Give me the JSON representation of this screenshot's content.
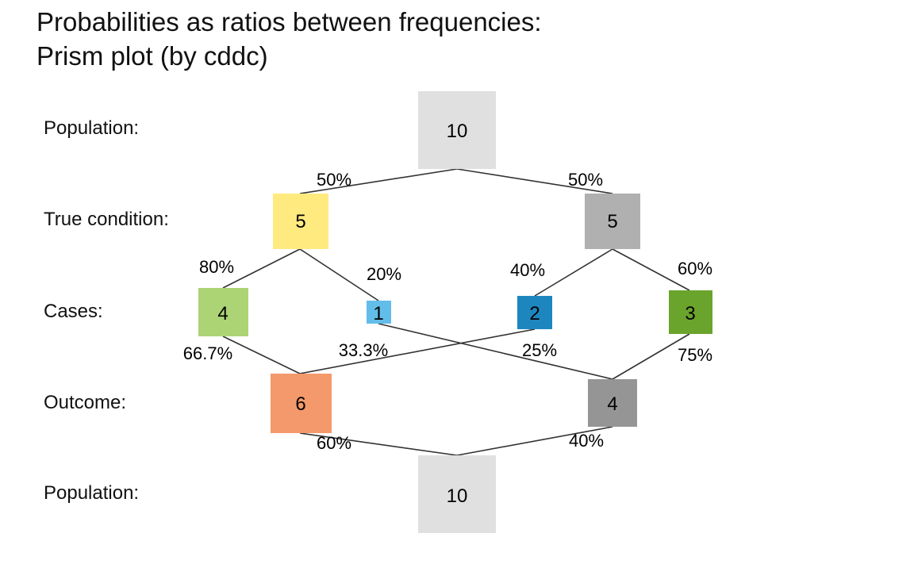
{
  "title": {
    "line1": "Probabilities as ratios between frequencies:",
    "line2": "Prism plot (by cddc)"
  },
  "row_labels": {
    "population_top": "Population:",
    "condition": "True condition:",
    "cases": "Cases:",
    "outcome": "Outcome:",
    "population_bottom": "Population:"
  },
  "colors": {
    "population": "#e0e0e0",
    "cond_true": "#ffea80",
    "cond_false": "#b0b0b0",
    "hi": "#acd475",
    "mi": "#62bde9",
    "fa": "#1e86bf",
    "cr": "#6aa42c",
    "dec_pos": "#f4996c",
    "dec_neg": "#959595",
    "line": "#333333"
  },
  "nodes": {
    "population_top": "10",
    "cond_true": "5",
    "cond_false": "5",
    "hi": "4",
    "mi": "1",
    "fa": "2",
    "cr": "3",
    "dec_pos": "6",
    "dec_neg": "4",
    "population_bottom": "10"
  },
  "probabilities": {
    "prev": "50%",
    "prev_c": "50%",
    "sens": "80%",
    "mirt": "20%",
    "fart": "40%",
    "spec": "60%",
    "ppv": "66.7%",
    "fdr": "33.3%",
    "for": "25%",
    "npv": "75%",
    "ppod": "60%",
    "npod": "40%"
  }
}
